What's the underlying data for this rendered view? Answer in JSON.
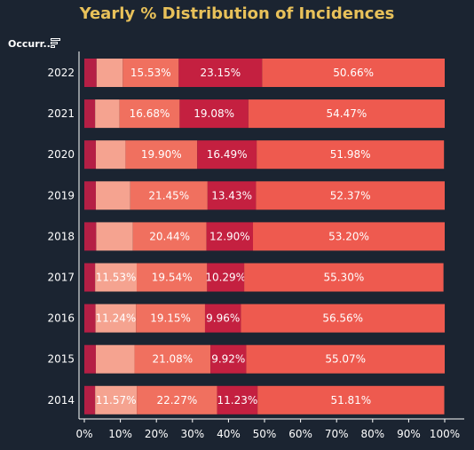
{
  "title": "Yearly % Distribution of Incidences",
  "row_header": "Occurr..",
  "icons": {
    "sort": "sort-descending-icon"
  },
  "colors": {
    "background": "#1b2431",
    "title": "#e8c15a",
    "segments": [
      "#b51f45",
      "#f5a390",
      "#f0705f",
      "#c42040",
      "#ee5a4f"
    ],
    "axis": "#ffffff",
    "label": "#ffffff"
  },
  "chart_data": {
    "type": "bar",
    "orientation": "horizontal",
    "stacked": true,
    "title": "Yearly % Distribution of Incidences",
    "categories": [
      "2022",
      "2021",
      "2020",
      "2019",
      "2018",
      "2017",
      "2016",
      "2015",
      "2014"
    ],
    "series": [
      {
        "values": [
          3.4,
          3.0,
          3.2,
          3.2,
          3.3,
          3.0,
          3.1,
          3.2,
          3.0
        ]
      },
      {
        "values": [
          7.26,
          6.77,
          8.23,
          9.55,
          10.16,
          11.53,
          11.24,
          10.73,
          11.57
        ]
      },
      {
        "values": [
          15.53,
          16.68,
          19.9,
          21.45,
          20.44,
          19.54,
          19.15,
          21.08,
          22.27
        ]
      },
      {
        "values": [
          23.15,
          19.08,
          16.49,
          13.43,
          12.9,
          10.29,
          9.96,
          9.92,
          11.23
        ]
      },
      {
        "values": [
          50.66,
          54.47,
          51.98,
          52.37,
          53.2,
          55.3,
          56.56,
          55.07,
          51.81
        ]
      }
    ],
    "labels": [
      [
        "",
        "",
        "15.53%",
        "23.15%",
        "50.66%"
      ],
      [
        "",
        "",
        "16.68%",
        "19.08%",
        "54.47%"
      ],
      [
        "",
        "",
        "19.90%",
        "16.49%",
        "51.98%"
      ],
      [
        "",
        "",
        "21.45%",
        "13.43%",
        "52.37%"
      ],
      [
        "",
        "",
        "20.44%",
        "12.90%",
        "53.20%"
      ],
      [
        "",
        "11.53%",
        "19.54%",
        "10.29%",
        "55.30%"
      ],
      [
        "",
        "11.24%",
        "19.15%",
        "9.96%",
        "56.56%"
      ],
      [
        "",
        "",
        "21.08%",
        "9.92%",
        "55.07%"
      ],
      [
        "",
        "11.57%",
        "22.27%",
        "11.23%",
        "51.81%"
      ]
    ],
    "xlim": [
      0,
      100
    ],
    "xticks": [
      "0%",
      "10%",
      "20%",
      "30%",
      "40%",
      "50%",
      "60%",
      "70%",
      "80%",
      "90%",
      "100%"
    ],
    "grid": false,
    "legend": "none"
  }
}
